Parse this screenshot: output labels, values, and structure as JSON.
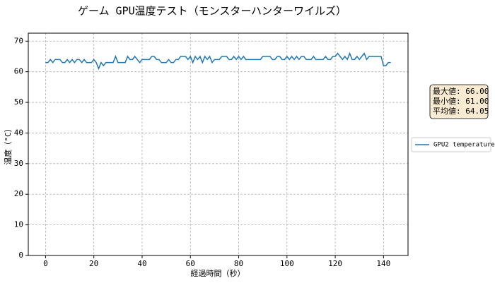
{
  "chart_data": {
    "type": "line",
    "title": "ゲーム GPU温度テスト（モンスターハンターワイルズ）",
    "xlabel": "経過時間（秒）",
    "ylabel": "温度（°C）",
    "x": [
      0,
      1,
      2,
      3,
      4,
      5,
      6,
      7,
      8,
      9,
      10,
      11,
      12,
      13,
      14,
      15,
      16,
      17,
      18,
      19,
      20,
      21,
      22,
      23,
      24,
      25,
      26,
      27,
      28,
      29,
      30,
      31,
      32,
      33,
      34,
      35,
      36,
      37,
      38,
      39,
      40,
      41,
      42,
      43,
      44,
      45,
      46,
      47,
      48,
      49,
      50,
      51,
      52,
      53,
      54,
      55,
      56,
      57,
      58,
      59,
      60,
      61,
      62,
      63,
      64,
      65,
      66,
      67,
      68,
      69,
      70,
      71,
      72,
      73,
      74,
      75,
      76,
      77,
      78,
      79,
      80,
      81,
      82,
      83,
      84,
      85,
      86,
      87,
      88,
      89,
      90,
      91,
      92,
      93,
      94,
      95,
      96,
      97,
      98,
      99,
      100,
      101,
      102,
      103,
      104,
      105,
      106,
      107,
      108,
      109,
      110,
      111,
      112,
      113,
      114,
      115,
      116,
      117,
      118,
      119,
      120,
      121,
      122,
      123,
      124,
      125,
      126,
      127,
      128,
      129,
      130,
      131,
      132,
      133,
      134,
      135,
      136,
      137,
      138,
      139,
      140,
      141,
      142,
      143
    ],
    "series": [
      {
        "name": "GPU2 temperature",
        "color": "#1f77b4",
        "values": [
          63,
          63,
          64,
          63,
          64,
          64,
          64,
          63,
          63,
          64,
          63,
          64,
          63,
          64,
          64,
          63,
          64,
          63,
          63,
          63,
          64,
          63,
          61,
          63,
          62,
          63,
          63,
          63,
          63,
          65,
          63,
          63,
          63,
          63,
          65,
          64,
          64,
          65,
          64,
          63,
          64,
          64,
          64,
          64,
          65,
          65,
          64,
          64,
          63,
          63,
          63,
          64,
          63,
          63,
          64,
          64,
          65,
          65,
          65,
          64,
          65,
          63,
          65,
          64,
          65,
          63,
          65,
          64,
          65,
          63,
          64,
          64,
          64,
          65,
          65,
          65,
          64,
          64,
          65,
          64,
          65,
          64,
          65,
          64,
          64,
          64,
          64,
          64,
          64,
          64,
          65,
          65,
          65,
          65,
          64,
          64,
          65,
          65,
          64,
          64,
          65,
          64,
          65,
          64,
          65,
          64,
          65,
          65,
          64,
          64,
          64,
          65,
          64,
          64,
          64,
          64,
          65,
          64,
          64,
          65,
          65,
          66,
          65,
          64,
          65,
          64,
          66,
          64,
          64,
          65,
          64,
          65,
          66,
          64,
          65,
          65,
          65,
          65,
          65,
          65,
          62,
          62,
          63,
          63
        ]
      }
    ],
    "xlim": [
      -7.15,
      150.15
    ],
    "ylim": [
      0,
      72.6
    ],
    "xticks": [
      0,
      20,
      40,
      60,
      80,
      100,
      120,
      140
    ],
    "yticks": [
      0,
      10,
      20,
      30,
      40,
      50,
      60,
      70
    ],
    "grid": true,
    "legend": "right",
    "annotations": [
      "最大値: 66.00",
      "最小値: 61.00",
      "平均値: 64.05"
    ]
  }
}
